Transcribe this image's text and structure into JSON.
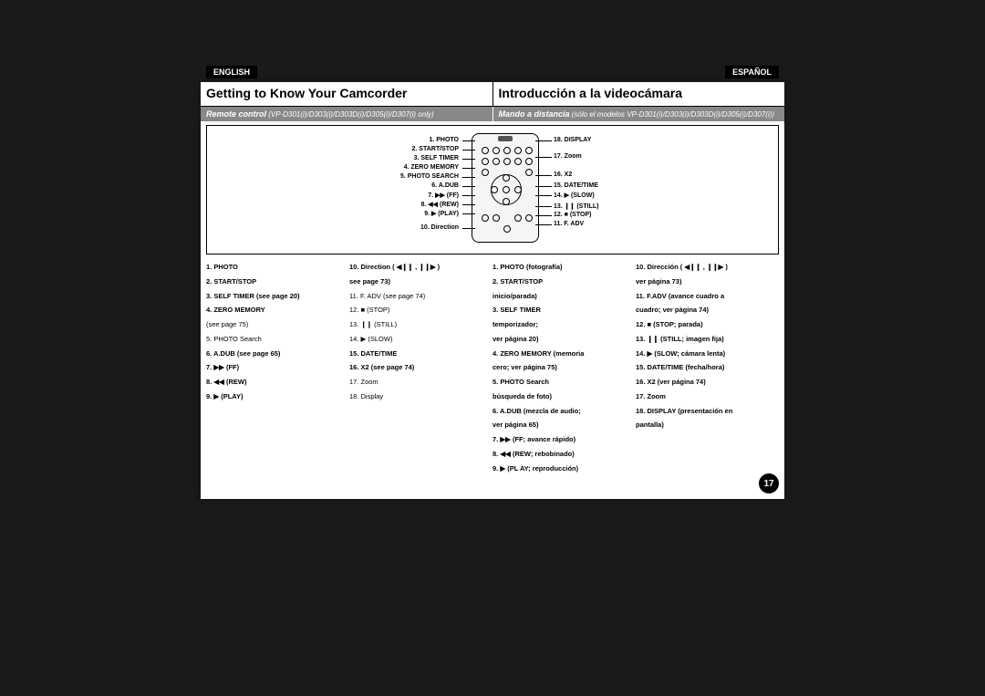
{
  "lang": {
    "left": "ENGLISH",
    "right": "ESPAÑOL"
  },
  "title": {
    "left": "Getting to Know Your Camcorder",
    "right": "Introducción a la videocámara"
  },
  "subtitle": {
    "left_strong": "Remote control",
    "left_small": " (VP-D301(i)/D303(i)/D303D(i)/D305(i)/D307(i) only)",
    "right_strong": "Mando a distancia",
    "right_small": " (sólo el modelos VP-D301(i)/D303(i)/D303D(i)/D305(i)/D307(i))"
  },
  "diagram": {
    "left_labels": [
      "1. PHOTO",
      "2. START/STOP",
      "3. SELF TIMER",
      "4. ZERO MEMORY",
      "5. PHOTO SEARCH",
      "6. A.DUB",
      "7. ▶▶ (FF)",
      "8. ◀◀ (REW)",
      "9. ▶ (PLAY)",
      "10. Direction"
    ],
    "right_labels": [
      "18. DISPLAY",
      "17. Zoom",
      "16. X2",
      "15. DATE/TIME",
      "14. ▶ (SLOW)",
      "13. ❙❙ (STILL)",
      "12. ■ (STOP)",
      "11. F. ADV"
    ]
  },
  "legend_en": {
    "col1": [
      {
        "t": "1.  PHOTO",
        "b": true
      },
      {
        "t": "2.  START/STOP",
        "b": true
      },
      {
        "t": "3.  SELF TIMER (see page 20)",
        "b": true
      },
      {
        "t": "4.  ZERO MEMORY",
        "b": true
      },
      {
        "t": "     (see page 75)",
        "b": false
      },
      {
        "t": "5.  PHOTO Search",
        "b": false
      },
      {
        "t": "6.  A.DUB (see page 65)",
        "b": true
      },
      {
        "t": "7.  ▶▶ (FF)",
        "b": true
      },
      {
        "t": "8.  ◀◀ (REW)",
        "b": true
      },
      {
        "t": "9.  ▶ (PLAY)",
        "b": true
      }
    ],
    "col2": [
      {
        "t": "10. Direction ( ◀❙❙ , ❙❙▶ )",
        "b": true
      },
      {
        "t": "      see page 73)",
        "b": true
      },
      {
        "t": "11. F. ADV  (see page 74)",
        "b": false
      },
      {
        "t": "12. ■ (STOP)",
        "b": false
      },
      {
        "t": "13. ❙❙ (STILL)",
        "b": false
      },
      {
        "t": "14. ▶ (SLOW)",
        "b": false
      },
      {
        "t": "15. DATE/TIME",
        "b": true
      },
      {
        "t": "16. X2 (see page 74)",
        "b": true
      },
      {
        "t": "17. Zoom",
        "b": false
      },
      {
        "t": "18. Display",
        "b": false
      }
    ]
  },
  "legend_es": {
    "col1": [
      {
        "t": "1.  PHOTO (fotografía)",
        "b": true
      },
      {
        "t": "2.  START/STOP",
        "b": true
      },
      {
        "t": "     inicio/parada)",
        "b": true
      },
      {
        "t": "3.  SELF TIMER",
        "b": true
      },
      {
        "t": "     temporizador;",
        "b": true
      },
      {
        "t": "     ver página 20)",
        "b": true
      },
      {
        "t": "4.  ZERO MEMORY (memoria",
        "b": true
      },
      {
        "t": "     cero; ver página 75)",
        "b": true
      },
      {
        "t": "5.  PHOTO Search",
        "b": true
      },
      {
        "t": "     búsqueda de foto)",
        "b": true
      },
      {
        "t": "6.  A.DUB (mezcla de audio;",
        "b": true
      },
      {
        "t": "     ver página 65)",
        "b": true
      },
      {
        "t": "7.  ▶▶ (FF; avance rápido)",
        "b": true
      },
      {
        "t": "8.  ◀◀ (REW; rebobinado)",
        "b": true
      },
      {
        "t": "9.  ▶ (PL AY; reproducción)",
        "b": true
      }
    ],
    "col2": [
      {
        "t": "10. Dirección ( ◀❙❙ , ❙❙▶ )",
        "b": true
      },
      {
        "t": "      ver página 73)",
        "b": true
      },
      {
        "t": "11. F.ADV (avance cuadro a",
        "b": true
      },
      {
        "t": "      cuadro; ver página 74)",
        "b": true
      },
      {
        "t": "12. ■ (STOP; parada)",
        "b": true
      },
      {
        "t": "13. ❙❙ (STILL; imagen fija)",
        "b": true
      },
      {
        "t": "14. ▶ (SLOW; cámara lenta)",
        "b": true
      },
      {
        "t": "15. DATE/TIME (fecha/hora)",
        "b": true
      },
      {
        "t": "16. X2 (ver página 74)",
        "b": true
      },
      {
        "t": "17. Zoom",
        "b": true
      },
      {
        "t": "18. DISPLAY (presentación en",
        "b": true
      },
      {
        "t": "      pantalla)",
        "b": true
      }
    ]
  },
  "page_number": "17",
  "colors": {
    "background": "#1a1a1a",
    "page": "#ffffff",
    "tag_bg": "#000000",
    "subtitle_bg": "#888888"
  }
}
